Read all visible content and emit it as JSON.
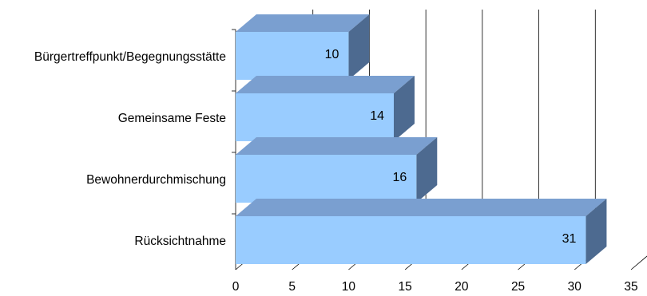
{
  "chart_data": {
    "type": "bar",
    "orientation": "horizontal",
    "style": "3d",
    "categories": [
      "Bürgertreffpunkt/Begegnungsstätte",
      "Gemeinsame Feste",
      "Bewohnerdurchmischung",
      "Rücksichtnahme"
    ],
    "values": [
      10,
      14,
      16,
      31
    ],
    "xlim": [
      0,
      35
    ],
    "xticks": [
      0,
      5,
      10,
      15,
      20,
      25,
      30,
      35
    ],
    "grid": true,
    "legend": "none",
    "colors": {
      "bar_front": "#99ccff",
      "bar_top": "#7a9fd0",
      "bar_side": "#4d6a90",
      "gridline": "#000000"
    }
  }
}
